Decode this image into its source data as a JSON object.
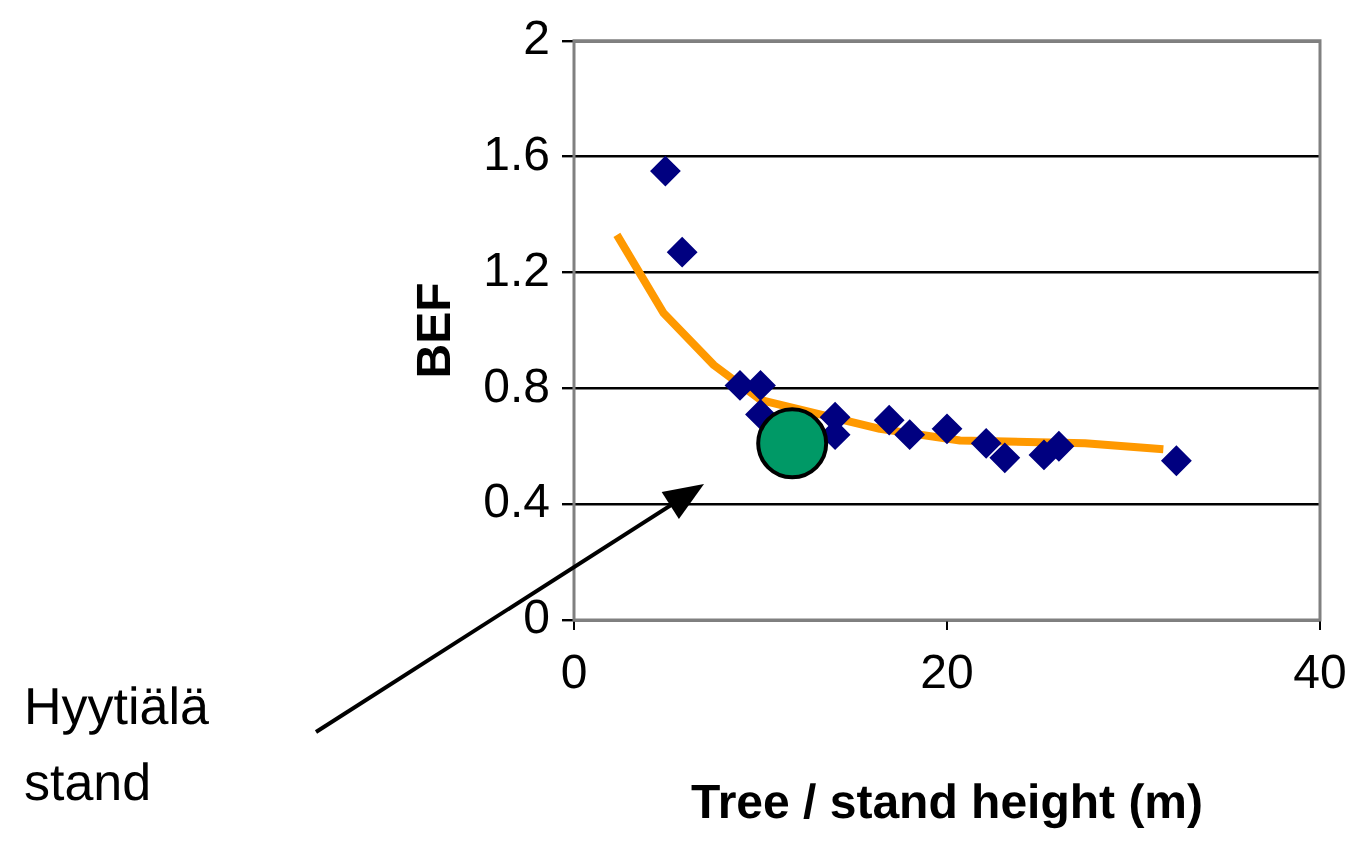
{
  "chart_data": {
    "type": "scatter",
    "xlabel": "Tree / stand height (m)",
    "ylabel": "BEF",
    "xlim": [
      0,
      40
    ],
    "xticks": [
      0,
      20,
      40
    ],
    "ylim": [
      0,
      2
    ],
    "yticks": [
      0,
      0.4,
      0.8,
      1.2,
      1.6,
      2
    ],
    "grid": "y",
    "legend": false,
    "annotations": [
      "Hyytiälä\nstand"
    ],
    "series": [
      {
        "type": "line",
        "color": "#ff9900",
        "marker": "none",
        "x": [
          2.3,
          4.8,
          7.5,
          10.0,
          16.4,
          20.7,
          27.4,
          31.6
        ],
        "values": [
          1.33,
          1.06,
          0.88,
          0.76,
          0.66,
          0.62,
          0.61,
          0.59
        ]
      },
      {
        "color": "#000080",
        "marker": "diamond",
        "x": [
          4.9,
          5.8,
          8.9,
          10.0,
          10.0,
          14.0,
          14.0,
          16.9,
          18.0,
          20.0,
          22.1,
          23.1,
          25.2,
          26.0,
          32.3
        ],
        "values": [
          1.55,
          1.27,
          0.81,
          0.81,
          0.71,
          0.7,
          0.64,
          0.69,
          0.64,
          0.66,
          0.61,
          0.56,
          0.57,
          0.6,
          0.55
        ]
      },
      {
        "color": "#009966",
        "marker": "circle",
        "x": [
          11.7
        ],
        "values": [
          0.61
        ]
      }
    ]
  }
}
